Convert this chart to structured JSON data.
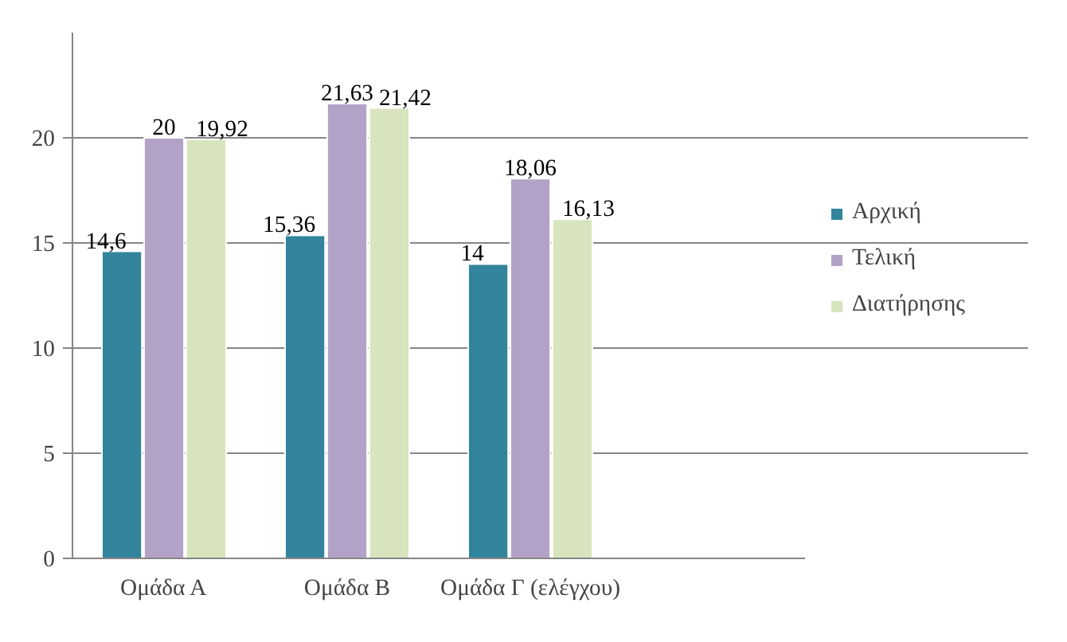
{
  "chart_data": {
    "type": "bar",
    "categories": [
      "Ομάδα Α",
      "Ομάδα Β",
      "Ομάδα Γ (ελέγχου)",
      null
    ],
    "series": [
      {
        "name": "Αρχική",
        "color": "#31849b",
        "values": [
          14.6,
          15.36,
          14,
          null
        ],
        "value_labels": [
          "14,6",
          "15,36",
          "14",
          null
        ]
      },
      {
        "name": "Τελική",
        "color": "#b3a2c7",
        "values": [
          20,
          21.63,
          18.06,
          null
        ],
        "value_labels": [
          "20",
          "21,63",
          "18,06",
          null
        ]
      },
      {
        "name": "Διατήρησης",
        "color": "#d7e4bd",
        "values": [
          19.92,
          21.42,
          16.13,
          null
        ],
        "value_labels": [
          "19,92",
          "21,42",
          "16,13",
          null
        ]
      }
    ],
    "ylim": [
      0,
      25
    ],
    "yticks": [
      0,
      5,
      10,
      15,
      20
    ],
    "grid": "y",
    "legend": "right"
  }
}
